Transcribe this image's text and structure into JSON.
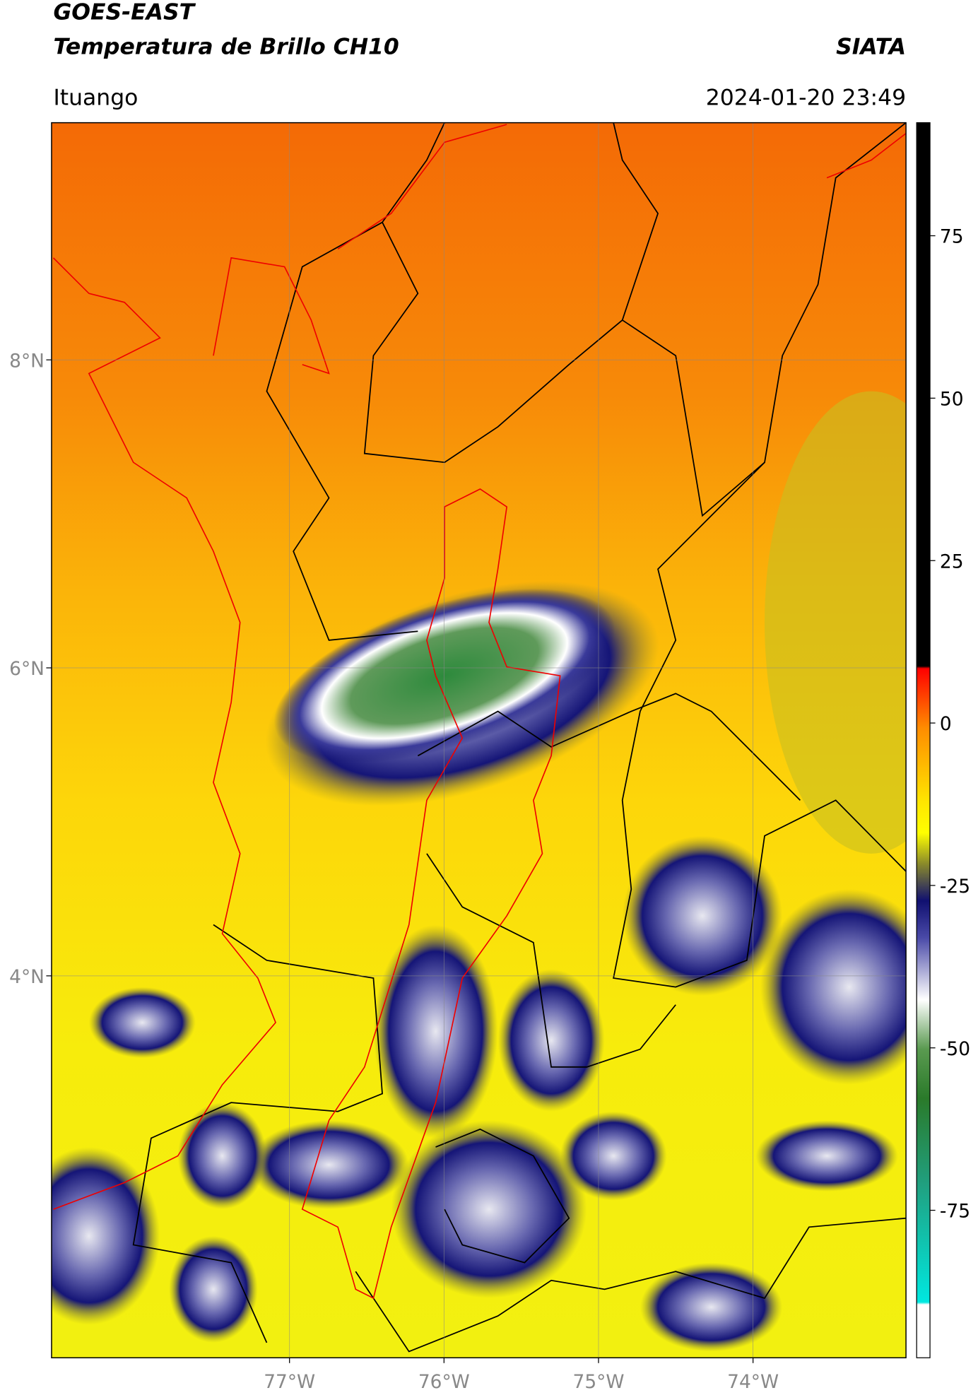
{
  "header": {
    "title_line1": "GOES-EAST",
    "title_line2": "Temperatura de Brillo CH10",
    "source": "SIATA",
    "location": "Ituango",
    "datetime": "2024-01-20 23:49"
  },
  "map": {
    "xlim": [
      -78.54,
      -73.01
    ],
    "ylim": [
      1.52,
      9.54
    ],
    "xticks": [
      {
        "value": -77,
        "label": "77°W"
      },
      {
        "value": -76,
        "label": "76°W"
      },
      {
        "value": -75,
        "label": "75°W"
      },
      {
        "value": -74,
        "label": "74°W"
      }
    ],
    "yticks": [
      {
        "value": 8,
        "label": "8°N"
      },
      {
        "value": 6,
        "label": "6°N"
      },
      {
        "value": 4,
        "label": "4°N"
      }
    ],
    "grid": true
  },
  "colorbar": {
    "lim": [
      -97.7,
      92.4
    ],
    "ticks": [
      75,
      50,
      25,
      0,
      -25,
      -50,
      -75
    ]
  }
}
